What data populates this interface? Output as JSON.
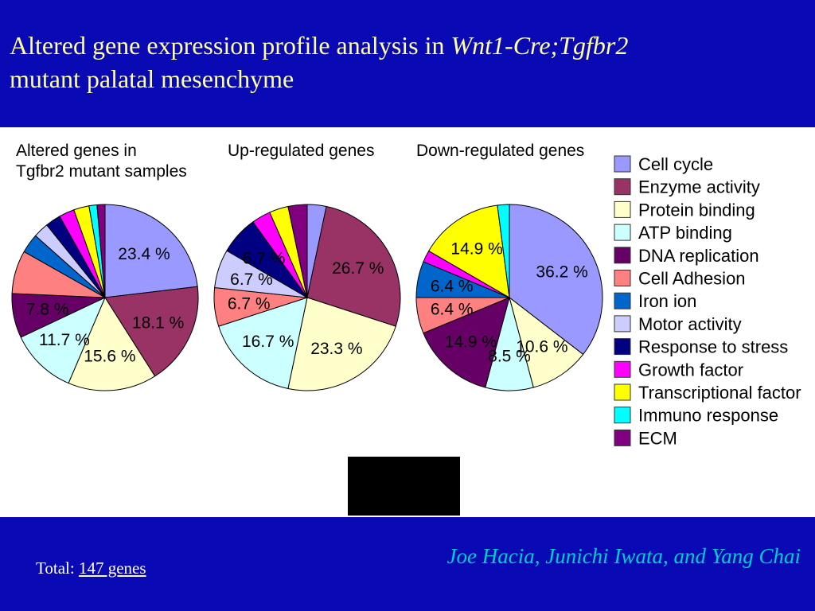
{
  "header": {
    "title_main": "Altered gene expression profile analysis in ",
    "title_italic": "Wnt1-Cre;Tgfbr2",
    "title_line2": "mutant palatal mesenchyme"
  },
  "footer": {
    "total_label": "Total:",
    "total_link": "147 genes",
    "authors": "Joe Hacia, Junichi Iwata, and Yang Chai"
  },
  "colors": {
    "header_bg": "#0a0ab4",
    "title_text": "#ffff99",
    "authors_text": "#00cccc"
  },
  "chart_data": [
    {
      "type": "pie",
      "title_lines": [
        "Altered genes in",
        "Tgfbr2 mutant samples"
      ],
      "slices": [
        {
          "category": "Cell cycle",
          "value": 23.4,
          "label": "23.4 %"
        },
        {
          "category": "Enzyme activity",
          "value": 18.1,
          "label": "18.1 %"
        },
        {
          "category": "Protein binding",
          "value": 15.6,
          "label": "15.6 %"
        },
        {
          "category": "ATP binding",
          "value": 11.7,
          "label": "11.7 %"
        },
        {
          "category": "DNA replication",
          "value": 7.8,
          "label": "7.8 %"
        },
        {
          "category": "Cell Adhesion",
          "value": 7.6,
          "label": ""
        },
        {
          "category": "Iron ion",
          "value": 3.4,
          "label": ""
        },
        {
          "category": "Motor activity",
          "value": 2.7,
          "label": ""
        },
        {
          "category": "Response to stress",
          "value": 2.7,
          "label": ""
        },
        {
          "category": "Growth factor",
          "value": 2.7,
          "label": ""
        },
        {
          "category": "Transcriptional factor",
          "value": 2.7,
          "label": ""
        },
        {
          "category": "Immuno response",
          "value": 1.4,
          "label": ""
        },
        {
          "category": "ECM",
          "value": 1.4,
          "label": ""
        }
      ]
    },
    {
      "type": "pie",
      "title_lines": [
        "Up-regulated genes"
      ],
      "slices": [
        {
          "category": "Cell cycle",
          "value": 3.3,
          "label": ""
        },
        {
          "category": "Enzyme activity",
          "value": 26.7,
          "label": "26.7 %"
        },
        {
          "category": "Protein binding",
          "value": 23.3,
          "label": "23.3 %"
        },
        {
          "category": "ATP binding",
          "value": 16.7,
          "label": "16.7 %"
        },
        {
          "category": "Cell Adhesion",
          "value": 6.7,
          "label": "6.7 %"
        },
        {
          "category": "Motor activity",
          "value": 6.7,
          "label": "6.7 %"
        },
        {
          "category": "Response to stress",
          "value": 6.7,
          "label": "6.7 %"
        },
        {
          "category": "Growth factor",
          "value": 3.3,
          "label": ""
        },
        {
          "category": "Transcriptional factor",
          "value": 3.3,
          "label": ""
        },
        {
          "category": "ECM",
          "value": 3.3,
          "label": ""
        }
      ]
    },
    {
      "type": "pie",
      "title_lines": [
        "Down-regulated genes"
      ],
      "slices": [
        {
          "category": "Cell cycle",
          "value": 36.2,
          "label": "36.2 %"
        },
        {
          "category": "Protein binding",
          "value": 10.6,
          "label": "10.6 %"
        },
        {
          "category": "ATP binding",
          "value": 8.5,
          "label": "8.5 %"
        },
        {
          "category": "DNA replication",
          "value": 14.9,
          "label": "14.9 %"
        },
        {
          "category": "Cell Adhesion",
          "value": 6.4,
          "label": "6.4 %"
        },
        {
          "category": "Iron ion",
          "value": 6.4,
          "label": "6.4 %"
        },
        {
          "category": "Growth factor",
          "value": 2.1,
          "label": ""
        },
        {
          "category": "Transcriptional factor",
          "value": 14.9,
          "label": "14.9 %"
        },
        {
          "category": "Immuno response",
          "value": 2.1,
          "label": ""
        }
      ]
    }
  ],
  "legend": [
    {
      "name": "Cell cycle",
      "color": "#9999ff"
    },
    {
      "name": "Enzyme activity",
      "color": "#993366"
    },
    {
      "name": "Protein binding",
      "color": "#ffffcc"
    },
    {
      "name": "ATP binding",
      "color": "#ccffff"
    },
    {
      "name": "DNA replication",
      "color": "#660066"
    },
    {
      "name": "Cell Adhesion",
      "color": "#ff8080"
    },
    {
      "name": "Iron ion",
      "color": "#0066cc"
    },
    {
      "name": "Motor activity",
      "color": "#ccccff"
    },
    {
      "name": "Response to stress",
      "color": "#000080"
    },
    {
      "name": "Growth factor",
      "color": "#ff00ff"
    },
    {
      "name": "Transcriptional factor",
      "color": "#ffff00"
    },
    {
      "name": "Immuno response",
      "color": "#00ffff"
    },
    {
      "name": "ECM",
      "color": "#800080"
    }
  ]
}
